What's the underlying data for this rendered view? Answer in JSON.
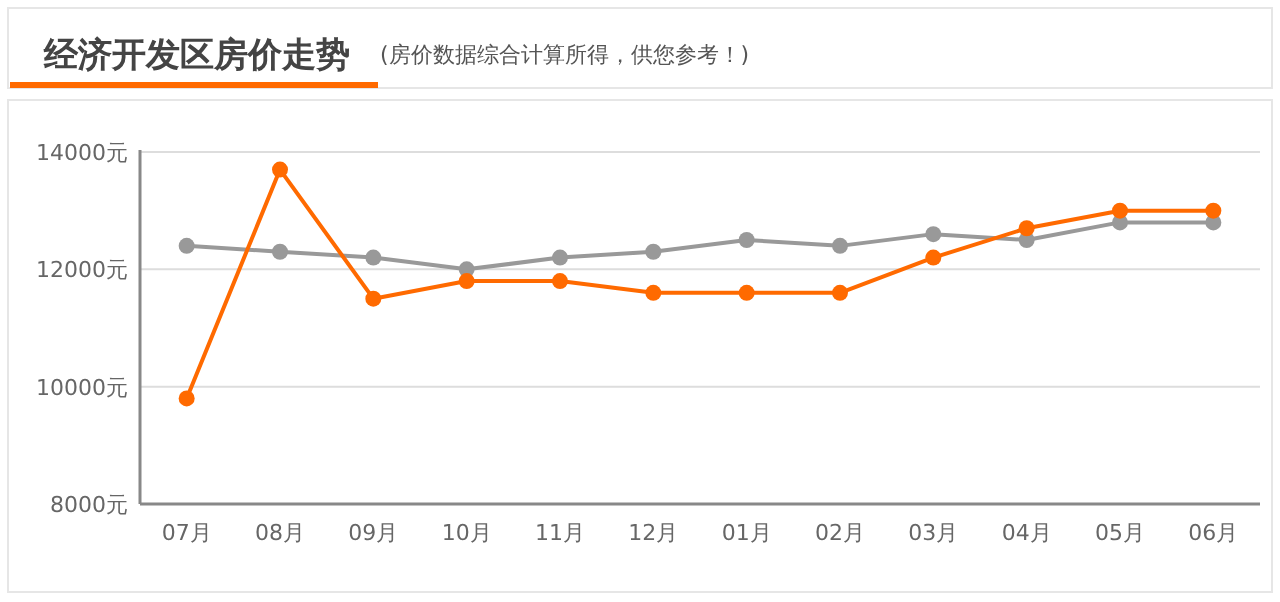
{
  "chart_data": {
    "type": "line",
    "title": "经济开发区房价走势",
    "subtitle": "(房价数据综合计算所得，供您参考！)",
    "categories": [
      "07月",
      "08月",
      "09月",
      "10月",
      "11月",
      "12月",
      "01月",
      "02月",
      "03月",
      "04月",
      "05月",
      "06月"
    ],
    "series": [
      {
        "color": "#999999",
        "values": [
          12400,
          12300,
          12200,
          12000,
          12200,
          12300,
          12500,
          12400,
          12600,
          12500,
          12800,
          12800
        ]
      },
      {
        "color": "#ff6a00",
        "values": [
          9800,
          13700,
          11500,
          11800,
          11800,
          11600,
          11600,
          11600,
          12200,
          12700,
          13000,
          13000
        ]
      }
    ],
    "ylim": [
      8000,
      14000
    ],
    "yticks": [
      {
        "value": 8000,
        "label": "8000元"
      },
      {
        "value": 10000,
        "label": "10000元"
      },
      {
        "value": 12000,
        "label": "12000元"
      },
      {
        "value": 14000,
        "label": "14000元"
      }
    ],
    "grid": "y",
    "marker": "circle",
    "line_style": "solid"
  }
}
